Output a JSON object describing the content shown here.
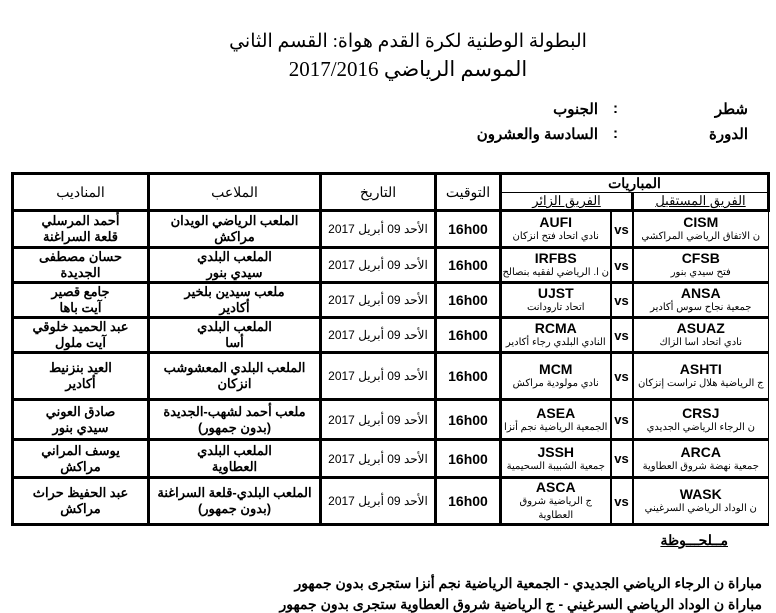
{
  "header": {
    "title": "البطولة الوطنية لكرة القدم هواة: القسم الثاني",
    "season": "الموسم الرياضي 2017/2016"
  },
  "meta": [
    {
      "label": "شطر",
      "sep": ":",
      "value": "الجنوب"
    },
    {
      "label": "الدورة",
      "sep": ":",
      "value": "السادسة والعشرون"
    }
  ],
  "table": {
    "headers": {
      "matches": "المباريات",
      "home": "الفريق المستقبل",
      "away": "الفريق الزائر",
      "time": "التوقيت",
      "date": "التاريخ",
      "stadium": "الملاعب",
      "delegate": "المناديب"
    },
    "vs": "vs",
    "rows": [
      {
        "home_code": "CISM",
        "home_name": "ن الاتفاق الرياضي المراكشي",
        "away_code": "AUFI",
        "away_name": "نادي اتحاد فتح انزكان",
        "time": "16h00",
        "date": "الأحد 09 أبريل 2017",
        "stadium1": "الملعب الرياضي الويدان",
        "stadium2": "مراكش",
        "delegate1": "أحمد المرسلي",
        "delegate2": "قلعة السراغنة"
      },
      {
        "home_code": "CFSB",
        "home_name": "فتح سيدي بنور",
        "away_code": "IRFBS",
        "away_name": "ن ا. الرياضي لفقيه بنصالح",
        "time": "16h00",
        "date": "الأحد 09 أبريل 2017",
        "stadium1": "الملعب البلدي",
        "stadium2": "سيدي بنور",
        "delegate1": "حسان مصطفى",
        "delegate2": "الجديدة"
      },
      {
        "home_code": "ANSA",
        "home_name": "جمعية نجاح سوس أكادير",
        "away_code": "UJST",
        "away_name": "اتحاد تارودانت",
        "time": "16h00",
        "date": "الأحد 09 أبريل 2017",
        "stadium1": "ملعب سيدين بلخير",
        "stadium2": "أكادير",
        "delegate1": "جامع قصير",
        "delegate2": "آيت باها"
      },
      {
        "home_code": "ASUAZ",
        "home_name": "نادي اتحاد اسا الزاك",
        "away_code": "RCMA",
        "away_name": "النادي البلدي رجاء أكادير",
        "time": "16h00",
        "date": "الأحد 09 أبريل 2017",
        "stadium1": "الملعب البلدي",
        "stadium2": "أسا",
        "delegate1": "عبد الحميد خلوقي",
        "delegate2": "آيت ملول"
      },
      {
        "home_code": "ASHTI",
        "home_name": "ج الرياضية هلال تراست إنزكان",
        "away_code": "MCM",
        "away_name": "نادي مولودية مراكش",
        "time": "16h00",
        "date": "الأحد 09 أبريل 2017",
        "stadium1": "الملعب البلدي المعشوشب",
        "stadium2": "انزكان",
        "delegate1": "العيد بنزنيط",
        "delegate2": "أكادير"
      },
      {
        "home_code": "CRSJ",
        "home_name": "ن الرجاء الرياضي الجديدي",
        "away_code": "ASEA",
        "away_name": "الجمعية الرياضية نجم أنزا",
        "time": "16h00",
        "date": "الأحد 09 أبريل 2017",
        "stadium1": "ملعب أحمد لشهب-الجديدة",
        "stadium2": "(بدون جمهور)",
        "delegate1": "صادق العوني",
        "delegate2": "سيدي بنور"
      },
      {
        "home_code": "ARCA",
        "home_name": "جمعية نهضة شروق العطاوية",
        "away_code": "JSSH",
        "away_name": "جمعية الشبيبة السحيمية",
        "time": "16h00",
        "date": "الأحد 09 أبريل 2017",
        "stadium1": "الملعب البلدي",
        "stadium2": "العطاوية",
        "delegate1": "يوسف المراني",
        "delegate2": "مراكش"
      },
      {
        "home_code": "WASK",
        "home_name": "ن الوداد الرياضي السرغيني",
        "away_code": "ASCA",
        "away_name": "ج الرياضية شروق العطاوية",
        "time": "16h00",
        "date": "الأحد 09 أبريل 2017",
        "stadium1": "الملعب البلدي-قلعة السراغنة",
        "stadium2": "(بدون جمهور)",
        "delegate1": "عبد الحفيظ حراث",
        "delegate2": "مراكش"
      }
    ]
  },
  "notes": {
    "heading": "مــلحـــوظة",
    "lines": [
      "مباراة ن الرجاء الرياضي الجديدي - الجمعية الرياضية نجم أنزا ستجرى بدون جمهور",
      "مباراة ن الوداد الرياضي السرغيني - ج الرياضية شروق العطاوية ستجرى بدون جمهور"
    ]
  }
}
